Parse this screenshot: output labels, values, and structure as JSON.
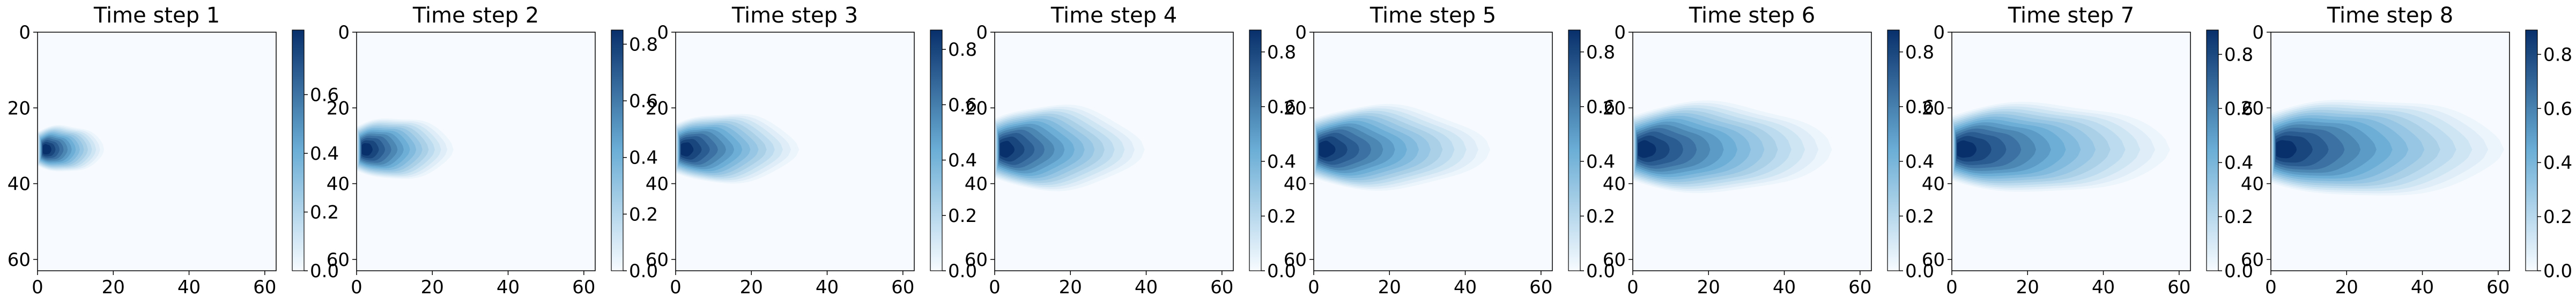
{
  "colormap": {
    "name": "Blues",
    "low_color": "#f7fbff",
    "mid_color": "#6baed6",
    "high_color": "#08306b"
  },
  "chart_data": [
    {
      "type": "heatmap",
      "title": "Time step 1",
      "xlim": [
        0,
        63
      ],
      "ylim": [
        63,
        0
      ],
      "xticks": [
        0,
        20,
        40,
        60
      ],
      "yticks": [
        0,
        20,
        40,
        60
      ],
      "source": {
        "x": 2,
        "y": 31
      },
      "plume_length": 15,
      "plume_halfwidth": 6,
      "peak": 0.82,
      "colorbar": {
        "range": [
          0,
          0.82
        ],
        "ticks": [
          0.0,
          0.2,
          0.4,
          0.6
        ]
      }
    },
    {
      "type": "heatmap",
      "title": "Time step 2",
      "xlim": [
        0,
        63
      ],
      "ylim": [
        63,
        0
      ],
      "xticks": [
        0,
        20,
        40,
        60
      ],
      "yticks": [
        0,
        20,
        40,
        60
      ],
      "source": {
        "x": 2,
        "y": 31
      },
      "plume_length": 23,
      "plume_halfwidth": 8,
      "peak": 0.85,
      "colorbar": {
        "range": [
          0,
          0.85
        ],
        "ticks": [
          0.0,
          0.2,
          0.4,
          0.6,
          0.8
        ]
      }
    },
    {
      "type": "heatmap",
      "title": "Time step 3",
      "xlim": [
        0,
        63
      ],
      "ylim": [
        63,
        0
      ],
      "xticks": [
        0,
        20,
        40,
        60
      ],
      "yticks": [
        0,
        20,
        40,
        60
      ],
      "source": {
        "x": 2,
        "y": 31
      },
      "plume_length": 30,
      "plume_halfwidth": 9,
      "peak": 0.87,
      "colorbar": {
        "range": [
          0,
          0.87
        ],
        "ticks": [
          0.0,
          0.2,
          0.4,
          0.6,
          0.8
        ]
      }
    },
    {
      "type": "heatmap",
      "title": "Time step 4",
      "xlim": [
        0,
        63
      ],
      "ylim": [
        63,
        0
      ],
      "xticks": [
        0,
        20,
        40,
        60
      ],
      "yticks": [
        0,
        20,
        40,
        60
      ],
      "source": {
        "x": 2,
        "y": 31
      },
      "plume_length": 37,
      "plume_halfwidth": 11,
      "peak": 0.88,
      "colorbar": {
        "range": [
          0,
          0.88
        ],
        "ticks": [
          0.0,
          0.2,
          0.4,
          0.6,
          0.8
        ]
      }
    },
    {
      "type": "heatmap",
      "title": "Time step 5",
      "xlim": [
        0,
        63
      ],
      "ylim": [
        63,
        0
      ],
      "xticks": [
        0,
        20,
        40,
        60
      ],
      "yticks": [
        0,
        20,
        40,
        60
      ],
      "source": {
        "x": 2,
        "y": 31
      },
      "plume_length": 44,
      "plume_halfwidth": 11,
      "peak": 0.88,
      "colorbar": {
        "range": [
          0,
          0.88
        ],
        "ticks": [
          0.0,
          0.2,
          0.4,
          0.6,
          0.8
        ]
      }
    },
    {
      "type": "heatmap",
      "title": "Time step 6",
      "xlim": [
        0,
        63
      ],
      "ylim": [
        63,
        0
      ],
      "xticks": [
        0,
        20,
        40,
        60
      ],
      "yticks": [
        0,
        20,
        40,
        60
      ],
      "source": {
        "x": 2,
        "y": 31
      },
      "plume_length": 50,
      "plume_halfwidth": 12,
      "peak": 0.88,
      "colorbar": {
        "range": [
          0,
          0.88
        ],
        "ticks": [
          0.0,
          0.2,
          0.4,
          0.6,
          0.8
        ]
      }
    },
    {
      "type": "heatmap",
      "title": "Time step 7",
      "xlim": [
        0,
        63
      ],
      "ylim": [
        63,
        0
      ],
      "xticks": [
        0,
        20,
        40,
        60
      ],
      "yticks": [
        0,
        20,
        40,
        60
      ],
      "source": {
        "x": 2,
        "y": 31
      },
      "plume_length": 55,
      "plume_halfwidth": 12,
      "peak": 0.89,
      "colorbar": {
        "range": [
          0,
          0.89
        ],
        "ticks": [
          0.0,
          0.2,
          0.4,
          0.6,
          0.8
        ]
      }
    },
    {
      "type": "heatmap",
      "title": "Time step 8",
      "xlim": [
        0,
        63
      ],
      "ylim": [
        63,
        0
      ],
      "xticks": [
        0,
        20,
        40,
        60
      ],
      "yticks": [
        0,
        20,
        40,
        60
      ],
      "source": {
        "x": 2,
        "y": 31
      },
      "plume_length": 59,
      "plume_halfwidth": 13,
      "peak": 0.89,
      "colorbar": {
        "range": [
          0,
          0.89
        ],
        "ticks": [
          0.0,
          0.2,
          0.4,
          0.6,
          0.8
        ]
      }
    }
  ]
}
